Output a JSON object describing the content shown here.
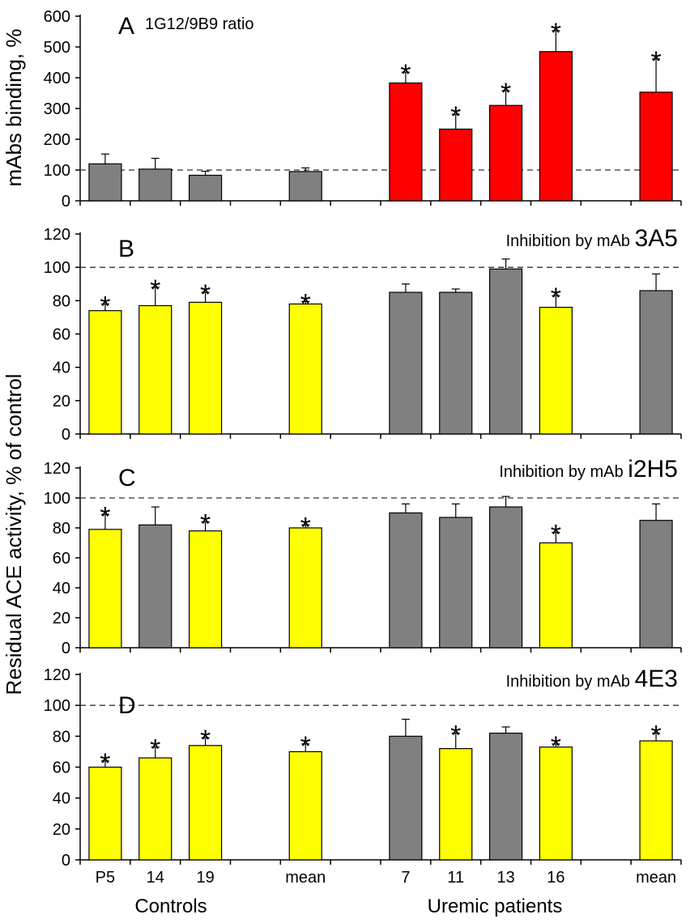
{
  "figure": {
    "y_label_top": "mAbs binding, %",
    "y_label_main": "Residual ACE activity, % of control",
    "group_labels": [
      "Controls",
      "Uremic patients"
    ]
  },
  "colors": {
    "gray": "#808080",
    "yellow": "#ffff00",
    "red": "#ff0000",
    "axis": "#000000"
  },
  "chart_data": [
    {
      "type": "bar",
      "panel": "A",
      "title": "1G12/9B9 ratio",
      "ylabel": "mAbs binding, %",
      "ylim": [
        0,
        600
      ],
      "yticks": [
        0,
        100,
        200,
        300,
        400,
        500,
        600
      ],
      "reference_line": 100,
      "categories": [
        "P5",
        "14",
        "19",
        "",
        "mean",
        "",
        "7",
        "11",
        "13",
        "16",
        "",
        "mean"
      ],
      "values": [
        120,
        103,
        83,
        null,
        95,
        null,
        383,
        233,
        310,
        485,
        null,
        353
      ],
      "errors": [
        32,
        35,
        13,
        null,
        12,
        null,
        35,
        48,
        48,
        68,
        null,
        108
      ],
      "colors": [
        "gray",
        "gray",
        "gray",
        null,
        "gray",
        null,
        "red",
        "red",
        "red",
        "red",
        null,
        "red"
      ],
      "significant": [
        false,
        false,
        false,
        false,
        false,
        false,
        true,
        true,
        true,
        true,
        false,
        true
      ]
    },
    {
      "type": "bar",
      "panel": "B",
      "title_prefix": "Inhibition by mAb",
      "title_mab": "3A5",
      "ylabel": "Residual ACE activity, % of control",
      "ylim": [
        0,
        120
      ],
      "yticks": [
        0,
        20,
        40,
        60,
        80,
        100,
        120
      ],
      "reference_line": 100,
      "categories": [
        "P5",
        "14",
        "19",
        "",
        "mean",
        "",
        "7",
        "11",
        "13",
        "16",
        "",
        "mean"
      ],
      "values": [
        74,
        77,
        79,
        null,
        78,
        null,
        85,
        85,
        99,
        76,
        null,
        86
      ],
      "errors": [
        4,
        11,
        6,
        null,
        1.5,
        null,
        5,
        2,
        6,
        7,
        null,
        10
      ],
      "colors": [
        "yellow",
        "yellow",
        "yellow",
        null,
        "yellow",
        null,
        "gray",
        "gray",
        "gray",
        "yellow",
        null,
        "gray"
      ],
      "significant": [
        true,
        true,
        true,
        false,
        true,
        false,
        false,
        false,
        false,
        true,
        false,
        false
      ]
    },
    {
      "type": "bar",
      "panel": "C",
      "title_prefix": "Inhibition by mAb",
      "title_mab": "i2H5",
      "ylabel": "Residual ACE activity, % of control",
      "ylim": [
        0,
        120
      ],
      "yticks": [
        0,
        20,
        40,
        60,
        80,
        100,
        120
      ],
      "reference_line": 100,
      "categories": [
        "P5",
        "14",
        "19",
        "",
        "mean",
        "",
        "7",
        "11",
        "13",
        "16",
        "",
        "mean"
      ],
      "values": [
        79,
        82,
        78,
        null,
        80,
        null,
        90,
        87,
        94,
        70,
        null,
        85
      ],
      "errors": [
        10,
        12,
        6,
        null,
        2,
        null,
        6,
        9,
        7,
        7,
        null,
        11
      ],
      "colors": [
        "yellow",
        "gray",
        "yellow",
        null,
        "yellow",
        null,
        "gray",
        "gray",
        "gray",
        "yellow",
        null,
        "gray"
      ],
      "significant": [
        true,
        false,
        true,
        false,
        true,
        false,
        false,
        false,
        false,
        true,
        false,
        false
      ]
    },
    {
      "type": "bar",
      "panel": "D",
      "title_prefix": "Inhibition by mAb",
      "title_mab": "4E3",
      "ylabel": "Residual ACE activity, % of control",
      "ylim": [
        0,
        120
      ],
      "yticks": [
        0,
        20,
        40,
        60,
        80,
        100,
        120
      ],
      "reference_line": 100,
      "categories": [
        "P5",
        "14",
        "19",
        "",
        "mean",
        "",
        "7",
        "11",
        "13",
        "16",
        "",
        "mean"
      ],
      "values": [
        60,
        66,
        74,
        null,
        70,
        null,
        80,
        72,
        82,
        73,
        null,
        77
      ],
      "errors": [
        4,
        7,
        5,
        null,
        5,
        null,
        11,
        10,
        4,
        2,
        null,
        5
      ],
      "colors": [
        "yellow",
        "yellow",
        "yellow",
        null,
        "yellow",
        null,
        "gray",
        "yellow",
        "gray",
        "yellow",
        null,
        "yellow"
      ],
      "significant": [
        true,
        true,
        true,
        false,
        true,
        false,
        false,
        true,
        false,
        true,
        false,
        true
      ]
    }
  ]
}
